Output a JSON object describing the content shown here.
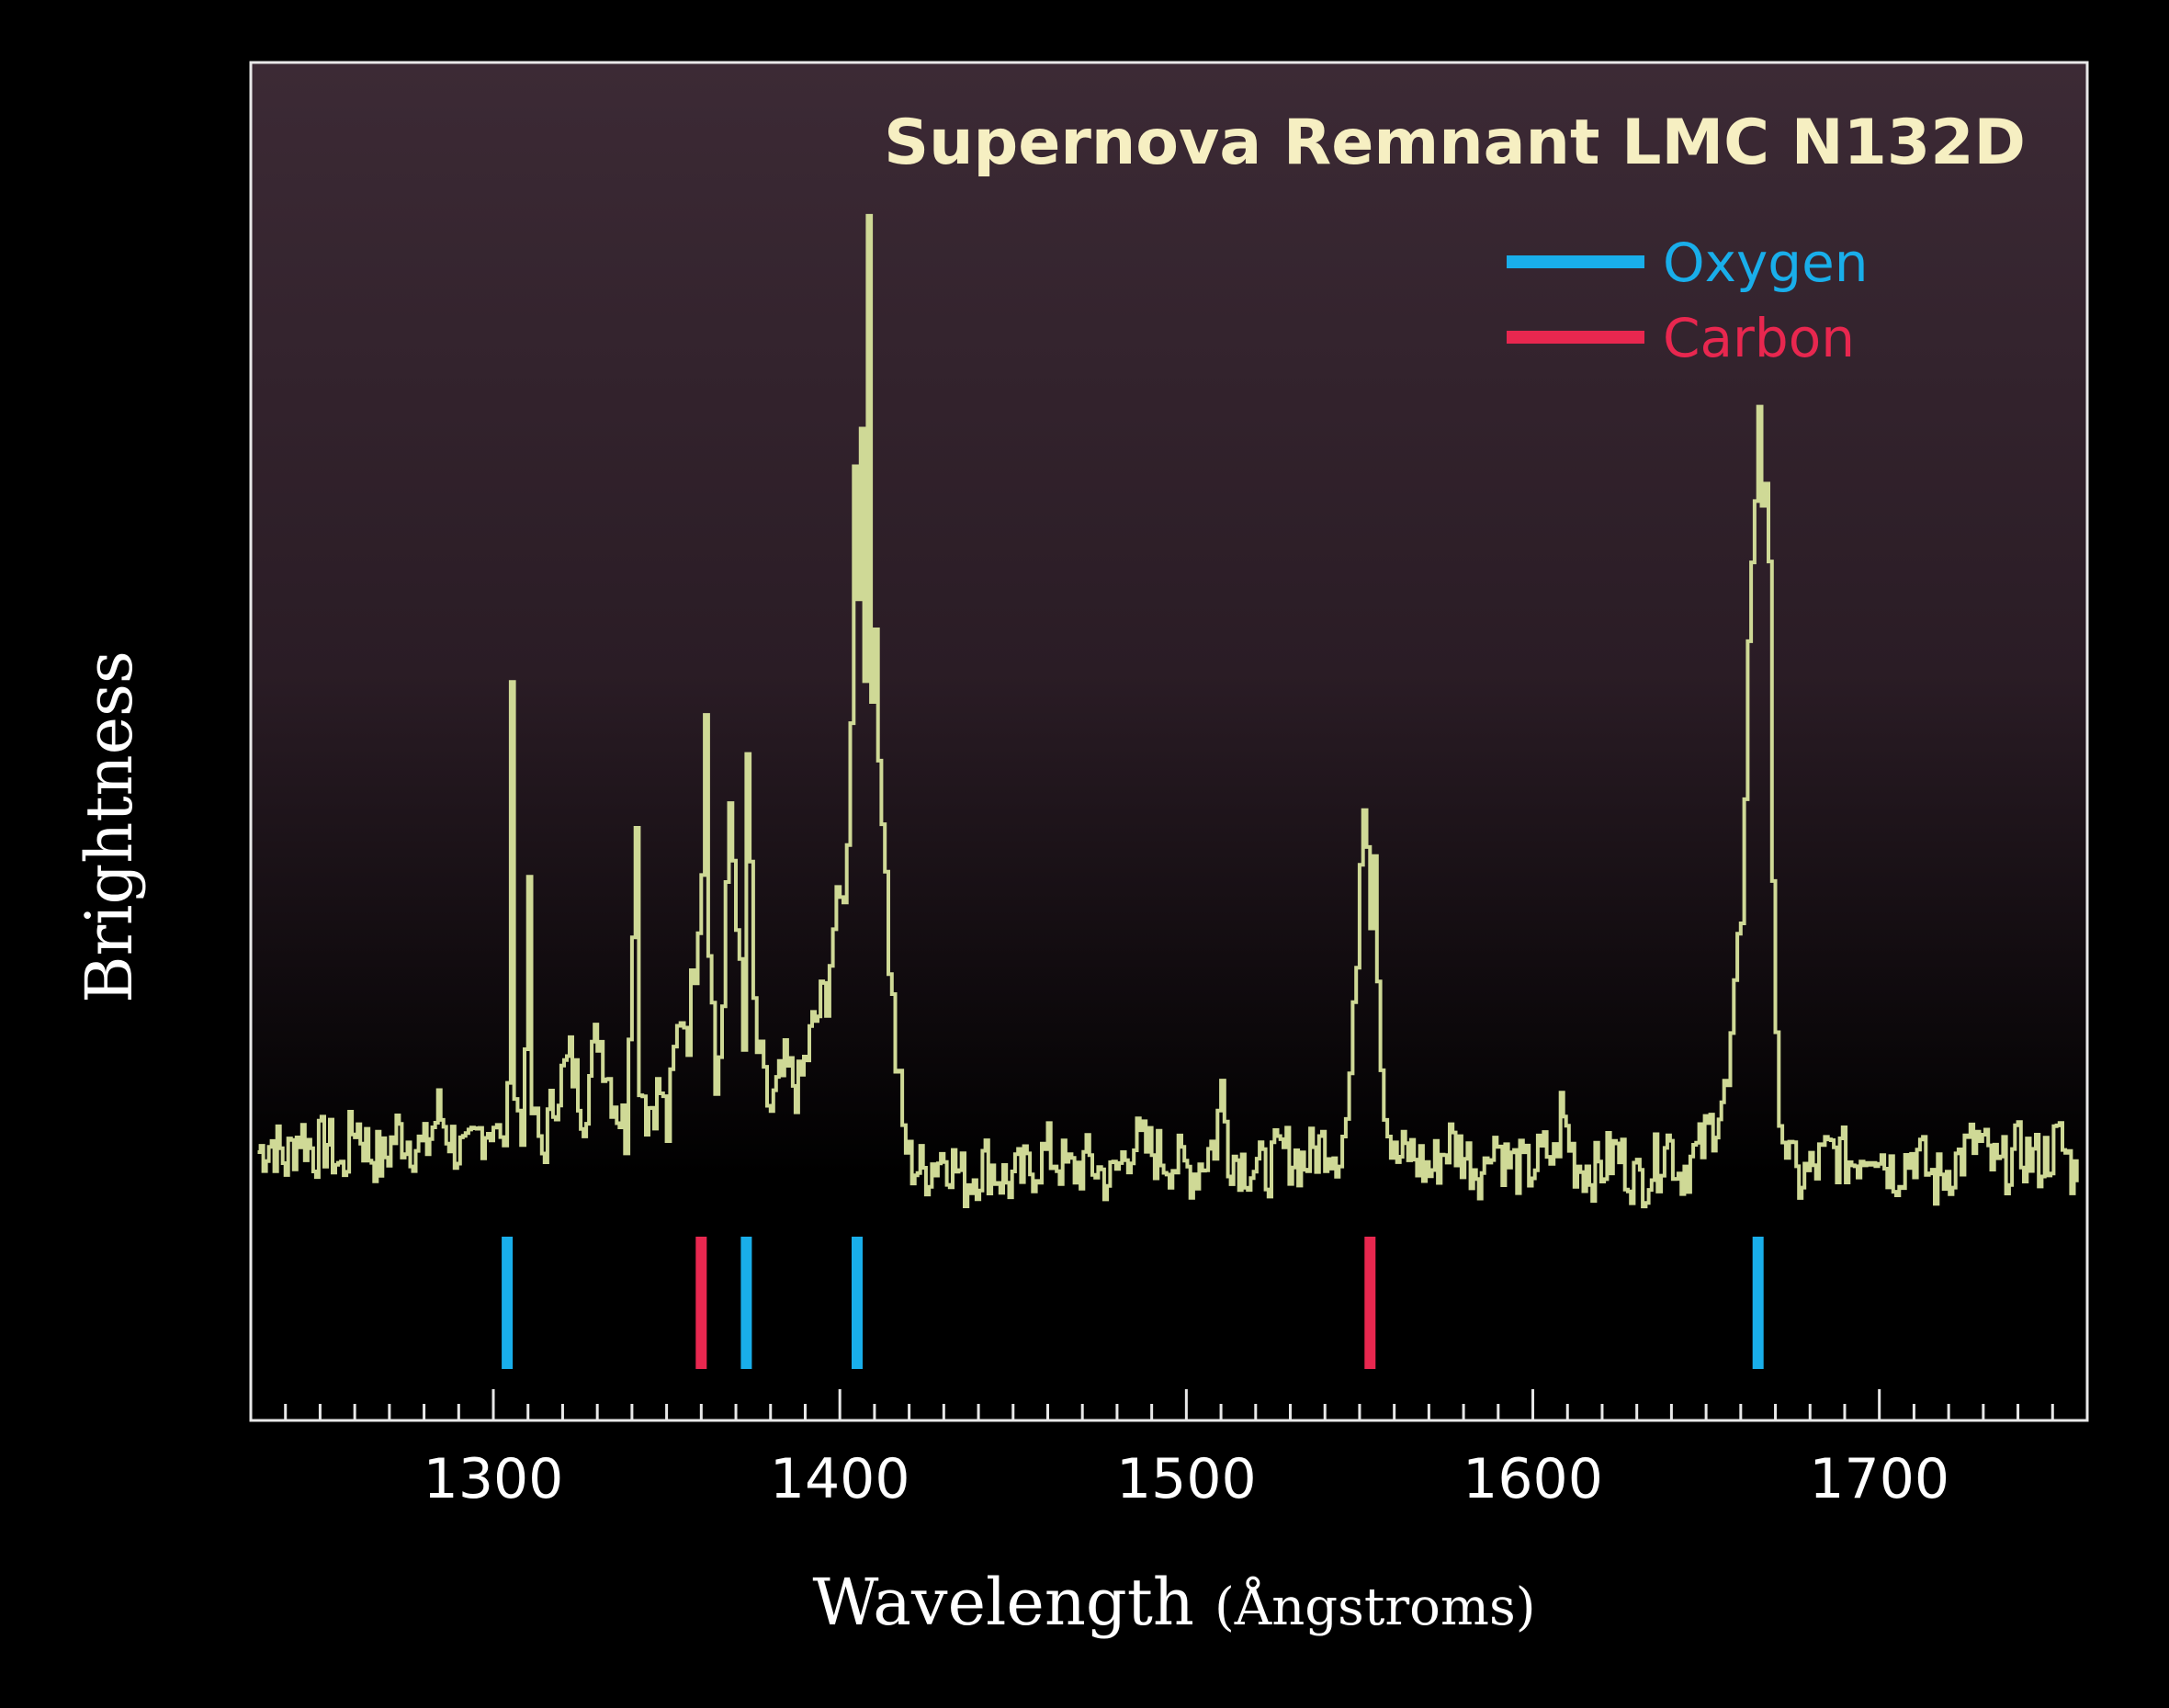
{
  "chart_data": {
    "type": "line",
    "title": "Supernova Remnant LMC N132D",
    "xlabel": "Wavelength",
    "xlabel_unit": "(Ångstroms)",
    "ylabel": "Brightness",
    "xlim": [
      1230,
      1760
    ],
    "ylim": [
      0,
      100
    ],
    "xticks": [
      1300,
      1400,
      1500,
      1600,
      1700
    ],
    "grid": false,
    "legend_position": "top-right",
    "legend": [
      {
        "name": "Oxygen",
        "color": "#19aeea"
      },
      {
        "name": "Carbon",
        "color": "#e8274f"
      }
    ],
    "series": [
      {
        "color": "#cfd996",
        "x": [
          1232,
          1236,
          1240,
          1244,
          1248,
          1252,
          1256,
          1260,
          1264,
          1268,
          1272,
          1276,
          1280,
          1284,
          1288,
          1292,
          1296,
          1300,
          1302,
          1304,
          1305,
          1306,
          1308,
          1310,
          1311,
          1312,
          1314,
          1318,
          1322,
          1326,
          1330,
          1334,
          1338,
          1340,
          1341,
          1342,
          1344,
          1348,
          1350,
          1352,
          1354,
          1356,
          1358,
          1360,
          1361,
          1362,
          1364,
          1366,
          1368,
          1370,
          1372,
          1373,
          1374,
          1375,
          1376,
          1378,
          1380,
          1384,
          1388,
          1392,
          1396,
          1398,
          1400,
          1402,
          1403,
          1404,
          1405,
          1406,
          1407,
          1408,
          1409,
          1410,
          1411,
          1412,
          1414,
          1416,
          1418,
          1420,
          1424,
          1430,
          1436,
          1442,
          1448,
          1454,
          1460,
          1466,
          1472,
          1478,
          1484,
          1490,
          1496,
          1502,
          1508,
          1510,
          1512,
          1516,
          1522,
          1528,
          1534,
          1540,
          1544,
          1546,
          1548,
          1550,
          1551,
          1552,
          1553,
          1554,
          1555,
          1556,
          1558,
          1560,
          1564,
          1570,
          1576,
          1582,
          1586,
          1588,
          1592,
          1598,
          1604,
          1606,
          1608,
          1612,
          1618,
          1624,
          1630,
          1636,
          1638,
          1642,
          1648,
          1652,
          1656,
          1658,
          1660,
          1662,
          1663,
          1664,
          1665,
          1666,
          1667,
          1668,
          1669,
          1670,
          1672,
          1674,
          1676,
          1680,
          1686,
          1692,
          1698,
          1704,
          1710,
          1716,
          1722,
          1728,
          1734,
          1740,
          1746,
          1752,
          1757
        ],
        "y": [
          6,
          7,
          5,
          8,
          6,
          7,
          4,
          9,
          6,
          5,
          8,
          7,
          6,
          10,
          7,
          5,
          8,
          9,
          6,
          10,
          55,
          12,
          7,
          30,
          10,
          8,
          6,
          12,
          15,
          10,
          18,
          12,
          8,
          30,
          37,
          14,
          10,
          12,
          8,
          15,
          20,
          18,
          25,
          35,
          50,
          28,
          12,
          20,
          40,
          30,
          15,
          45,
          32,
          20,
          16,
          12,
          10,
          14,
          12,
          18,
          22,
          28,
          30,
          35,
          50,
          75,
          60,
          78,
          55,
          95,
          50,
          60,
          45,
          40,
          25,
          15,
          8,
          5,
          4,
          6,
          3,
          5,
          3,
          4,
          6,
          4,
          5,
          3,
          7,
          6,
          5,
          4,
          7,
          12,
          6,
          5,
          4,
          6,
          5,
          7,
          6,
          9,
          18,
          35,
          42,
          38,
          30,
          36,
          25,
          15,
          8,
          5,
          6,
          4,
          7,
          5,
          4,
          8,
          5,
          4,
          6,
          5,
          10,
          5,
          4,
          6,
          3,
          5,
          8,
          4,
          6,
          9,
          12,
          20,
          30,
          55,
          65,
          68,
          80,
          70,
          73,
          65,
          30,
          15,
          8,
          5,
          3,
          4,
          6,
          5,
          7,
          4,
          6,
          3,
          5,
          7,
          4,
          6,
          5,
          7,
          3
        ]
      }
    ],
    "markers": [
      {
        "element": "Oxygen",
        "x": 1304
      },
      {
        "element": "Carbon",
        "x": 1360
      },
      {
        "element": "Oxygen",
        "x": 1373
      },
      {
        "element": "Oxygen",
        "x": 1405
      },
      {
        "element": "Carbon",
        "x": 1553
      },
      {
        "element": "Oxygen",
        "x": 1665
      }
    ]
  }
}
